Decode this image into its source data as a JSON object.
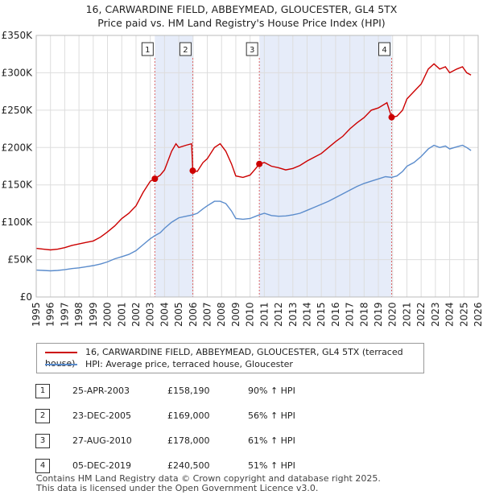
{
  "title_line1": "16, CARWARDINE FIELD, ABBEYMEAD, GLOUCESTER, GL4 5TX",
  "title_line2": "Price paid vs. HM Land Registry's House Price Index (HPI)",
  "colors": {
    "property": "#cc0000",
    "hpi": "#5b8ccc",
    "shade": "#dde6f7",
    "marker_line": "#d66",
    "grid": "#dddddd"
  },
  "chart_data": {
    "type": "line",
    "ylim": [
      0,
      350000
    ],
    "xlim": [
      1995,
      2026
    ],
    "y_ticks": [
      {
        "value": 0,
        "label": "£0"
      },
      {
        "value": 50000,
        "label": "£50K"
      },
      {
        "value": 100000,
        "label": "£100K"
      },
      {
        "value": 150000,
        "label": "£150K"
      },
      {
        "value": 200000,
        "label": "£200K"
      },
      {
        "value": 250000,
        "label": "£250K"
      },
      {
        "value": 300000,
        "label": "£300K"
      },
      {
        "value": 350000,
        "label": "£350K"
      }
    ],
    "x_ticks": [
      "1995",
      "1996",
      "1997",
      "1998",
      "1999",
      "2000",
      "2001",
      "2002",
      "2003",
      "2004",
      "2005",
      "2006",
      "2007",
      "2008",
      "2009",
      "2010",
      "2011",
      "2012",
      "2013",
      "2014",
      "2015",
      "2016",
      "2017",
      "2018",
      "2019",
      "2020",
      "2021",
      "2022",
      "2023",
      "2024",
      "2025",
      "2026"
    ],
    "shaded_ranges": [
      [
        2003.32,
        2005.98
      ],
      [
        2010.65,
        2019.93
      ]
    ],
    "series": [
      {
        "name": "16, CARWARDINE FIELD, ABBEYMEAD, GLOUCESTER, GL4 5TX (terraced house)",
        "color": "#cc0000",
        "points": [
          [
            1995.0,
            65000
          ],
          [
            1995.5,
            64000
          ],
          [
            1996.0,
            63000
          ],
          [
            1996.5,
            64000
          ],
          [
            1997.0,
            66000
          ],
          [
            1997.5,
            69000
          ],
          [
            1998.0,
            71000
          ],
          [
            1998.5,
            73000
          ],
          [
            1999.0,
            75000
          ],
          [
            1999.5,
            80000
          ],
          [
            2000.0,
            87000
          ],
          [
            2000.5,
            95000
          ],
          [
            2001.0,
            105000
          ],
          [
            2001.5,
            112000
          ],
          [
            2002.0,
            122000
          ],
          [
            2002.5,
            140000
          ],
          [
            2003.0,
            155000
          ],
          [
            2003.32,
            158190
          ],
          [
            2003.7,
            163000
          ],
          [
            2004.0,
            170000
          ],
          [
            2004.5,
            195000
          ],
          [
            2004.8,
            205000
          ],
          [
            2005.0,
            200000
          ],
          [
            2005.5,
            203000
          ],
          [
            2005.9,
            205000
          ],
          [
            2005.98,
            169000
          ],
          [
            2006.3,
            168000
          ],
          [
            2006.7,
            180000
          ],
          [
            2007.0,
            185000
          ],
          [
            2007.5,
            200000
          ],
          [
            2007.9,
            205000
          ],
          [
            2008.3,
            195000
          ],
          [
            2008.7,
            178000
          ],
          [
            2009.0,
            162000
          ],
          [
            2009.5,
            160000
          ],
          [
            2010.0,
            163000
          ],
          [
            2010.4,
            172000
          ],
          [
            2010.65,
            178000
          ],
          [
            2011.0,
            180000
          ],
          [
            2011.5,
            175000
          ],
          [
            2012.0,
            173000
          ],
          [
            2012.5,
            170000
          ],
          [
            2013.0,
            172000
          ],
          [
            2013.5,
            176000
          ],
          [
            2014.0,
            182000
          ],
          [
            2014.5,
            187000
          ],
          [
            2015.0,
            192000
          ],
          [
            2015.5,
            200000
          ],
          [
            2016.0,
            208000
          ],
          [
            2016.5,
            215000
          ],
          [
            2017.0,
            225000
          ],
          [
            2017.5,
            233000
          ],
          [
            2018.0,
            240000
          ],
          [
            2018.5,
            250000
          ],
          [
            2019.0,
            253000
          ],
          [
            2019.6,
            260000
          ],
          [
            2019.93,
            240500
          ],
          [
            2020.3,
            242000
          ],
          [
            2020.7,
            250000
          ],
          [
            2021.0,
            265000
          ],
          [
            2021.5,
            275000
          ],
          [
            2022.0,
            285000
          ],
          [
            2022.5,
            305000
          ],
          [
            2022.9,
            312000
          ],
          [
            2023.3,
            305000
          ],
          [
            2023.7,
            308000
          ],
          [
            2024.0,
            300000
          ],
          [
            2024.5,
            305000
          ],
          [
            2024.9,
            308000
          ],
          [
            2025.2,
            300000
          ],
          [
            2025.5,
            297000
          ]
        ]
      },
      {
        "name": "HPI: Average price, terraced house, Gloucester",
        "color": "#5b8ccc",
        "points": [
          [
            1995.0,
            36000
          ],
          [
            1995.5,
            35500
          ],
          [
            1996.0,
            35000
          ],
          [
            1996.5,
            35500
          ],
          [
            1997.0,
            36500
          ],
          [
            1997.5,
            38000
          ],
          [
            1998.0,
            39000
          ],
          [
            1998.5,
            40500
          ],
          [
            1999.0,
            42000
          ],
          [
            1999.5,
            44000
          ],
          [
            2000.0,
            47000
          ],
          [
            2000.5,
            51000
          ],
          [
            2001.0,
            54000
          ],
          [
            2001.5,
            57000
          ],
          [
            2002.0,
            62000
          ],
          [
            2002.5,
            70000
          ],
          [
            2003.0,
            78000
          ],
          [
            2003.32,
            82000
          ],
          [
            2003.7,
            86000
          ],
          [
            2004.0,
            92000
          ],
          [
            2004.5,
            100000
          ],
          [
            2005.0,
            106000
          ],
          [
            2005.5,
            108000
          ],
          [
            2005.98,
            110000
          ],
          [
            2006.3,
            112000
          ],
          [
            2006.7,
            118000
          ],
          [
            2007.0,
            122000
          ],
          [
            2007.5,
            128000
          ],
          [
            2007.9,
            128000
          ],
          [
            2008.3,
            125000
          ],
          [
            2008.7,
            115000
          ],
          [
            2009.0,
            105000
          ],
          [
            2009.5,
            104000
          ],
          [
            2010.0,
            105000
          ],
          [
            2010.4,
            108000
          ],
          [
            2010.65,
            110000
          ],
          [
            2011.0,
            112000
          ],
          [
            2011.5,
            109000
          ],
          [
            2012.0,
            108000
          ],
          [
            2012.5,
            108500
          ],
          [
            2013.0,
            110000
          ],
          [
            2013.5,
            112000
          ],
          [
            2014.0,
            116000
          ],
          [
            2014.5,
            120000
          ],
          [
            2015.0,
            124000
          ],
          [
            2015.5,
            128000
          ],
          [
            2016.0,
            133000
          ],
          [
            2016.5,
            138000
          ],
          [
            2017.0,
            143000
          ],
          [
            2017.5,
            148000
          ],
          [
            2018.0,
            152000
          ],
          [
            2018.5,
            155000
          ],
          [
            2019.0,
            158000
          ],
          [
            2019.5,
            161000
          ],
          [
            2019.93,
            160000
          ],
          [
            2020.3,
            162000
          ],
          [
            2020.7,
            168000
          ],
          [
            2021.0,
            175000
          ],
          [
            2021.5,
            180000
          ],
          [
            2022.0,
            188000
          ],
          [
            2022.5,
            198000
          ],
          [
            2022.9,
            203000
          ],
          [
            2023.3,
            200000
          ],
          [
            2023.7,
            202000
          ],
          [
            2024.0,
            198000
          ],
          [
            2024.5,
            201000
          ],
          [
            2024.9,
            203000
          ],
          [
            2025.2,
            200000
          ],
          [
            2025.5,
            196000
          ]
        ]
      }
    ],
    "sales": [
      {
        "id": "1",
        "x": 2003.32,
        "price": 158190
      },
      {
        "id": "2",
        "x": 2005.98,
        "price": 169000
      },
      {
        "id": "3",
        "x": 2010.65,
        "price": 178000
      },
      {
        "id": "4",
        "x": 2019.93,
        "price": 240500
      }
    ]
  },
  "legend": {
    "property_label": "16, CARWARDINE FIELD, ABBEYMEAD, GLOUCESTER, GL4 5TX (terraced house)",
    "hpi_label": "HPI: Average price, terraced house, Gloucester"
  },
  "table": [
    {
      "num": "1",
      "date": "25-APR-2003",
      "price": "£158,190",
      "hpi": "90% ↑ HPI"
    },
    {
      "num": "2",
      "date": "23-DEC-2005",
      "price": "£169,000",
      "hpi": "56% ↑ HPI"
    },
    {
      "num": "3",
      "date": "27-AUG-2010",
      "price": "£178,000",
      "hpi": "61% ↑ HPI"
    },
    {
      "num": "4",
      "date": "05-DEC-2019",
      "price": "£240,500",
      "hpi": "51% ↑ HPI"
    }
  ],
  "footer_line1": "Contains HM Land Registry data © Crown copyright and database right 2025.",
  "footer_line2": "This data is licensed under the Open Government Licence v3.0."
}
